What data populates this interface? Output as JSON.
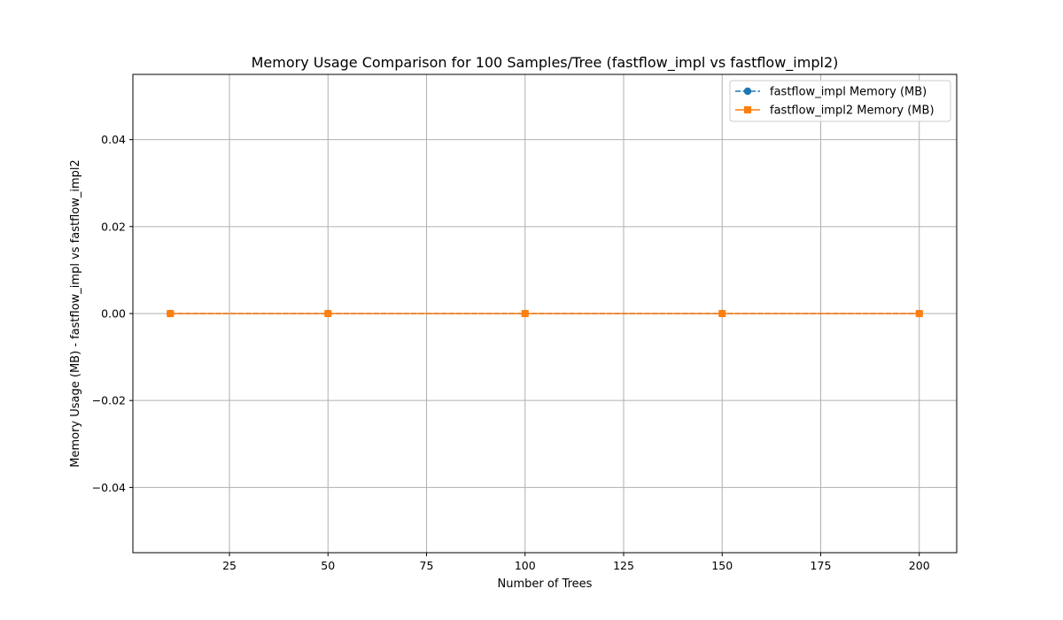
{
  "chart_data": {
    "type": "line",
    "title": "Memory Usage Comparison for 100 Samples/Tree (fastflow_impl vs fastflow_impl2)",
    "xlabel": "Number of Trees",
    "ylabel": "Memory Usage (MB) - fastflow_impl vs fastflow_impl2",
    "x": [
      10,
      50,
      100,
      150,
      200
    ],
    "xlim": [
      0.5,
      209.5
    ],
    "ylim": [
      -0.055,
      0.055
    ],
    "xticks": [
      25,
      50,
      75,
      100,
      125,
      150,
      175,
      200
    ],
    "yticks": [
      -0.04,
      -0.02,
      0.0,
      0.02,
      0.04
    ],
    "xtick_labels": [
      "25",
      "50",
      "75",
      "100",
      "125",
      "150",
      "175",
      "200"
    ],
    "ytick_labels": [
      "−0.04",
      "−0.02",
      "0.00",
      "0.02",
      "0.04"
    ],
    "grid": true,
    "legend_position": "top-right",
    "series": [
      {
        "name": "fastflow_impl Memory (MB)",
        "values": [
          0,
          0,
          0,
          0,
          0
        ],
        "color": "#1f77b4",
        "linestyle": "dashed",
        "marker": "circle"
      },
      {
        "name": "fastflow_impl2 Memory (MB)",
        "values": [
          0,
          0,
          0,
          0,
          0
        ],
        "color": "#ff7f0e",
        "linestyle": "solid",
        "marker": "square"
      }
    ]
  }
}
